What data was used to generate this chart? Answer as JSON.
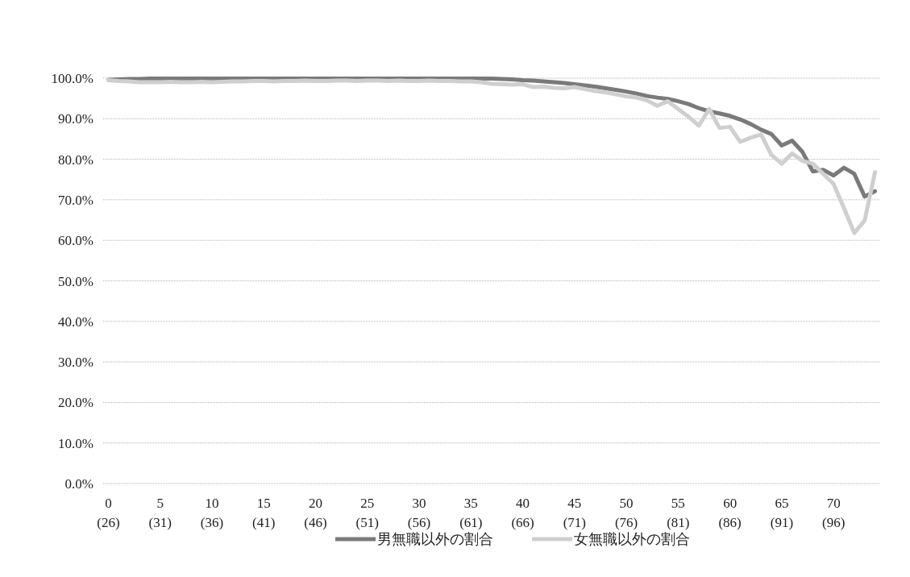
{
  "chart_data": {
    "type": "line",
    "categories": [
      "0\n(26)",
      null,
      null,
      null,
      null,
      "5\n(31)",
      null,
      null,
      null,
      null,
      "10\n(36)",
      null,
      null,
      null,
      null,
      "15\n(41)",
      null,
      null,
      null,
      null,
      "20\n(46)",
      null,
      null,
      null,
      null,
      "25\n(51)",
      null,
      null,
      null,
      null,
      "30\n(56)",
      null,
      null,
      null,
      null,
      "35\n(61)",
      null,
      null,
      null,
      null,
      "40\n(66)",
      null,
      null,
      null,
      null,
      "45\n(71)",
      null,
      null,
      null,
      null,
      "50\n(76)",
      null,
      null,
      null,
      null,
      "55\n(81)",
      null,
      null,
      null,
      null,
      "60\n(86)",
      null,
      null,
      null,
      null,
      "65\n(91)",
      null,
      null,
      null,
      null,
      "70\n(96)",
      null,
      null,
      null,
      null
    ],
    "series": [
      {
        "name": "男無職以外の割合",
        "color": "#7a7a7a",
        "values": [
          99.6,
          99.7,
          99.8,
          99.8,
          99.9,
          99.9,
          99.9,
          99.9,
          99.9,
          99.9,
          99.9,
          99.9,
          99.9,
          99.9,
          99.9,
          99.9,
          99.9,
          99.9,
          99.9,
          99.9,
          99.9,
          99.9,
          99.9,
          99.9,
          99.9,
          99.9,
          99.9,
          99.9,
          99.9,
          99.9,
          99.9,
          99.9,
          99.9,
          99.9,
          99.9,
          99.9,
          99.9,
          99.9,
          99.8,
          99.7,
          99.5,
          99.4,
          99.2,
          99.0,
          98.8,
          98.5,
          98.2,
          97.9,
          97.5,
          97.1,
          96.7,
          96.2,
          95.6,
          95.2,
          94.9,
          94.3,
          93.6,
          92.6,
          91.8,
          91.3,
          90.7,
          89.8,
          88.7,
          87.3,
          86.2,
          83.4,
          84.6,
          81.8,
          77.0,
          77.4,
          76.0,
          77.9,
          76.4,
          70.8,
          72.1
        ]
      },
      {
        "name": "女無職以外の割合",
        "color": "#cfcfcf",
        "values": [
          99.5,
          99.3,
          99.2,
          99.0,
          99.0,
          99.0,
          99.1,
          99.0,
          99.0,
          99.1,
          99.0,
          99.1,
          99.2,
          99.2,
          99.3,
          99.3,
          99.2,
          99.3,
          99.3,
          99.4,
          99.3,
          99.3,
          99.4,
          99.4,
          99.3,
          99.4,
          99.4,
          99.3,
          99.4,
          99.3,
          99.3,
          99.4,
          99.3,
          99.3,
          99.2,
          99.2,
          99.0,
          98.6,
          98.5,
          98.4,
          98.5,
          97.8,
          97.9,
          97.6,
          97.5,
          97.8,
          97.3,
          96.8,
          96.5,
          96.0,
          95.5,
          95.2,
          94.5,
          93.2,
          94.3,
          92.4,
          90.5,
          88.3,
          92.4,
          87.7,
          88.0,
          84.3,
          85.3,
          86.1,
          81.1,
          78.9,
          81.4,
          79.6,
          78.9,
          76.4,
          73.9,
          68.0,
          61.8,
          64.9,
          76.8
        ]
      }
    ],
    "ylim": [
      0,
      100
    ],
    "yticks": [
      {
        "value": 0,
        "label": "0.0%"
      },
      {
        "value": 10,
        "label": "10.0%"
      },
      {
        "value": 20,
        "label": "20.0%"
      },
      {
        "value": 30,
        "label": "30.0%"
      },
      {
        "value": 40,
        "label": "40.0%"
      },
      {
        "value": 50,
        "label": "50.0%"
      },
      {
        "value": 60,
        "label": "60.0%"
      },
      {
        "value": 70,
        "label": "70.0%"
      },
      {
        "value": 80,
        "label": "80.0%"
      },
      {
        "value": 90,
        "label": "90.0%"
      },
      {
        "value": 100,
        "label": "100.0%"
      }
    ],
    "grid": "y",
    "legend": "bottom",
    "marker": "none",
    "line_style": "solid"
  }
}
